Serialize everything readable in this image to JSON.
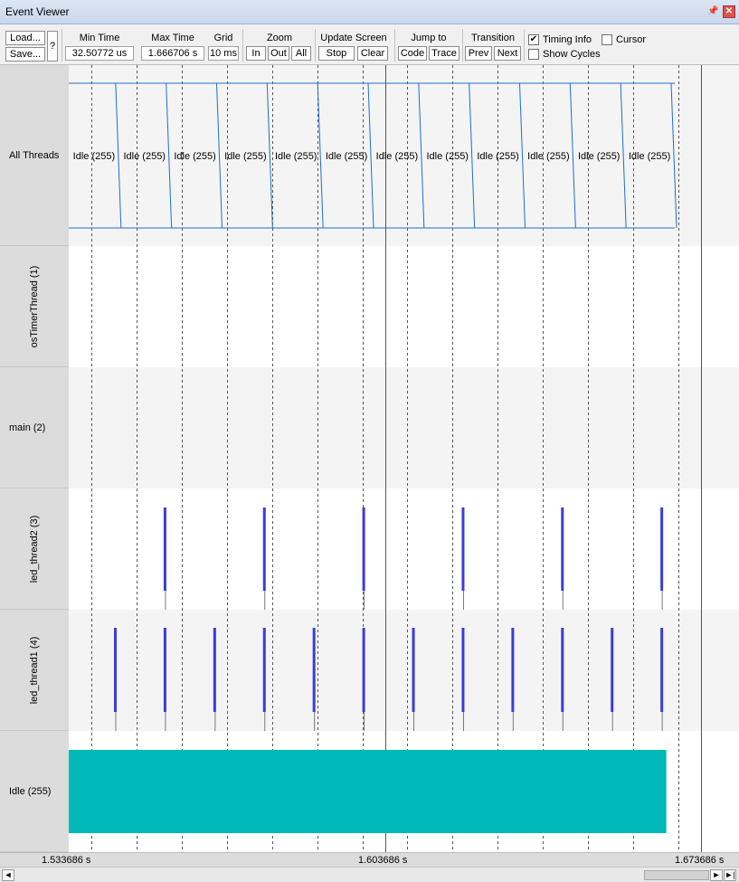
{
  "window": {
    "title": "Event Viewer",
    "pin_icon": "pin-icon",
    "close_icon": "close-icon"
  },
  "toolbar": {
    "load_label": "Load...",
    "save_label": "Save...",
    "help_label": "?",
    "min_time": {
      "label": "Min Time",
      "value": "32.50772 us"
    },
    "max_time": {
      "label": "Max Time",
      "value": "1.666706 s"
    },
    "grid": {
      "label": "Grid",
      "value": "10 ms"
    },
    "zoom": {
      "label": "Zoom",
      "in": "In",
      "out": "Out",
      "all": "All"
    },
    "update_screen": {
      "label": "Update Screen",
      "stop": "Stop",
      "clear": "Clear"
    },
    "jump_to": {
      "label": "Jump to",
      "code": "Code",
      "trace": "Trace"
    },
    "transition": {
      "label": "Transition",
      "prev": "Prev",
      "next": "Next"
    },
    "timing_info": {
      "label": "Timing Info",
      "checked": true
    },
    "cursor": {
      "label": "Cursor",
      "checked": false
    },
    "show_cycles": {
      "label": "Show Cycles",
      "checked": false
    }
  },
  "rows": [
    {
      "label": "All Threads",
      "orientation": "horizontal"
    },
    {
      "label": "osTimerThread (1)",
      "orientation": "vertical"
    },
    {
      "label": "main (2)",
      "orientation": "horizontal"
    },
    {
      "label": "led_thread2 (3)",
      "orientation": "vertical"
    },
    {
      "label": "led_thread1 (4)",
      "orientation": "vertical"
    },
    {
      "label": "Idle (255)",
      "orientation": "horizontal"
    }
  ],
  "all_threads_segment_label": "Idle (255)",
  "all_threads_segments": 12,
  "axis": {
    "start_label": "1.533686 s",
    "mid_label": "1.603686 s",
    "end_label": "1.673686 s",
    "start": 1.533686,
    "end": 1.673686,
    "grid_step": 0.01
  },
  "events": {
    "led_thread2_times": [
      1.555,
      1.577,
      1.599,
      1.621,
      1.643,
      1.665
    ],
    "led_thread1_times": [
      1.544,
      1.555,
      1.566,
      1.577,
      1.588,
      1.599,
      1.61,
      1.621,
      1.632,
      1.643,
      1.654,
      1.665
    ],
    "idle_start": 1.533686,
    "idle_end": 1.666
  },
  "colors": {
    "event_blue": "#3b3bdc",
    "idle_fill": "#00b8b8",
    "all_threads_line": "#1f6fc5",
    "row_alt": "#f4f4f4",
    "row_white": "#ffffff"
  }
}
